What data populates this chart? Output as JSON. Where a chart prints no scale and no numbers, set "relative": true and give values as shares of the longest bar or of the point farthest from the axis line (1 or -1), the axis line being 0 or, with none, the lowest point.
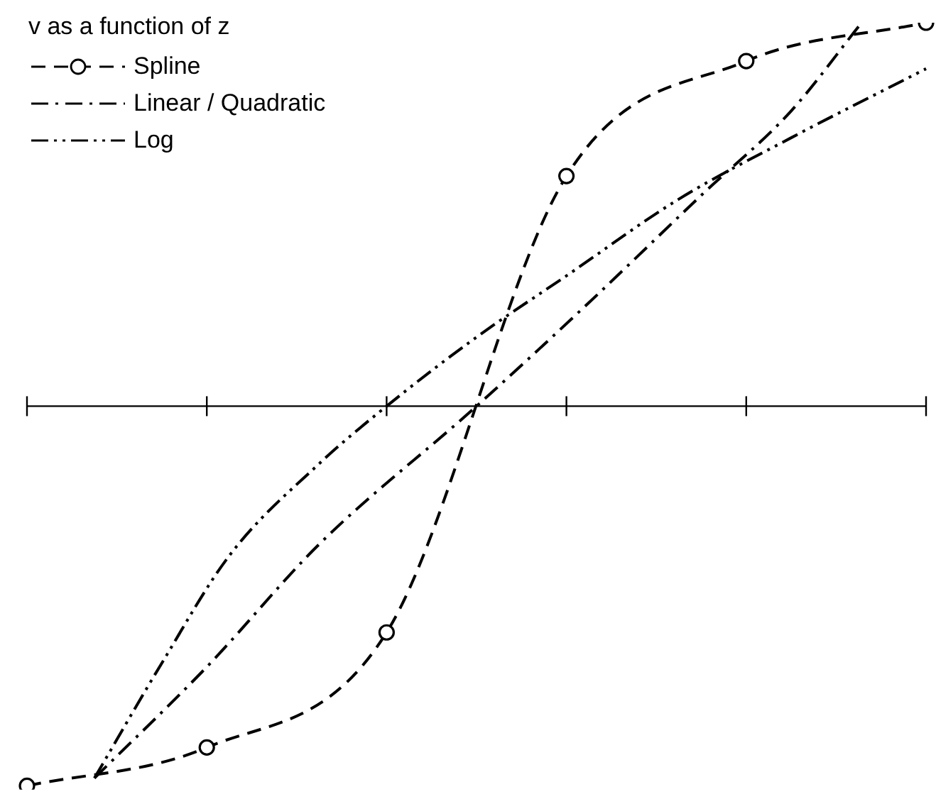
{
  "chart_data": {
    "type": "line",
    "legend_title": "v as a function of z",
    "relative": true,
    "legend": "top left",
    "line_style": "dashed",
    "categories": [
      null,
      null,
      null,
      null,
      null,
      null,
      null,
      null,
      null,
      null,
      null,
      null,
      null,
      null,
      null,
      null,
      null,
      null,
      null,
      null,
      null,
      null,
      null,
      null,
      null,
      null,
      null,
      null,
      null,
      null,
      null,
      null,
      null,
      null,
      null,
      null,
      null,
      null,
      null,
      null,
      null
    ],
    "series": [
      {
        "name": "Spline",
        "color": "#000000",
        "marker": "circle",
        "values": [
          -0.99,
          null,
          null,
          null,
          null,
          null,
          null,
          null,
          -0.89,
          null,
          null,
          null,
          null,
          null,
          null,
          null,
          -0.59,
          null,
          null,
          null,
          null,
          null,
          null,
          null,
          0.6,
          null,
          null,
          null,
          null,
          null,
          null,
          null,
          0.9,
          null,
          null,
          null,
          null,
          null,
          null,
          null,
          1.0
        ]
      },
      {
        "name": "Linear / Quadratic",
        "color": "#000000",
        "marker": "none",
        "values": [
          null,
          null,
          null,
          -0.97,
          null,
          null,
          null,
          null,
          -0.68,
          null,
          null,
          null,
          null,
          -0.36,
          null,
          null,
          null,
          null,
          null,
          null,
          0,
          null,
          null,
          null,
          null,
          0.27,
          null,
          null,
          null,
          null,
          0.55,
          null,
          null,
          null,
          0.77,
          null,
          null,
          0.99,
          null,
          null,
          null
        ]
      },
      {
        "name": "Log",
        "color": "#000000",
        "marker": "none",
        "values": [
          null,
          null,
          null,
          -0.97,
          null,
          null,
          -0.67,
          null,
          null,
          -0.39,
          null,
          null,
          null,
          -0.15,
          null,
          null,
          0,
          null,
          null,
          null,
          0.18,
          null,
          null,
          null,
          0.34,
          null,
          null,
          null,
          null,
          0.54,
          null,
          null,
          null,
          null,
          0.7,
          null,
          null,
          null,
          null,
          null,
          0.88
        ]
      }
    ]
  }
}
